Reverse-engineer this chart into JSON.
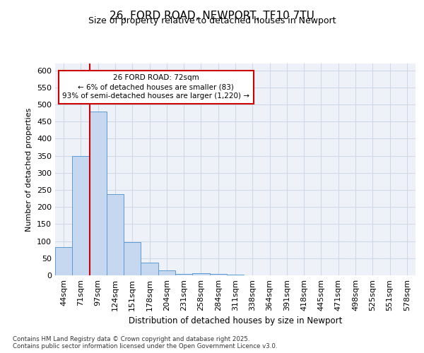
{
  "title_line1": "26, FORD ROAD, NEWPORT, TF10 7TU",
  "title_line2": "Size of property relative to detached houses in Newport",
  "xlabel": "Distribution of detached houses by size in Newport",
  "ylabel": "Number of detached properties",
  "categories": [
    "44sqm",
    "71sqm",
    "97sqm",
    "124sqm",
    "151sqm",
    "178sqm",
    "204sqm",
    "231sqm",
    "258sqm",
    "284sqm",
    "311sqm",
    "338sqm",
    "364sqm",
    "391sqm",
    "418sqm",
    "445sqm",
    "471sqm",
    "498sqm",
    "525sqm",
    "551sqm",
    "578sqm"
  ],
  "values": [
    83,
    350,
    480,
    237,
    97,
    37,
    15,
    5,
    7,
    5,
    2,
    0,
    0,
    0,
    0,
    0,
    0,
    0,
    0,
    0,
    0
  ],
  "bar_color": "#c5d8f0",
  "bar_edge_color": "#5b9bd5",
  "grid_color": "#d0d8e8",
  "background_color": "#eef2f8",
  "annotation_text": "26 FORD ROAD: 72sqm\n← 6% of detached houses are smaller (83)\n93% of semi-detached houses are larger (1,220) →",
  "annotation_box_color": "#ffffff",
  "annotation_border_color": "#cc0000",
  "vline_color": "#cc0000",
  "footer_text": "Contains HM Land Registry data © Crown copyright and database right 2025.\nContains public sector information licensed under the Open Government Licence v3.0.",
  "ylim": [
    0,
    620
  ],
  "yticks": [
    0,
    50,
    100,
    150,
    200,
    250,
    300,
    350,
    400,
    450,
    500,
    550,
    600
  ]
}
